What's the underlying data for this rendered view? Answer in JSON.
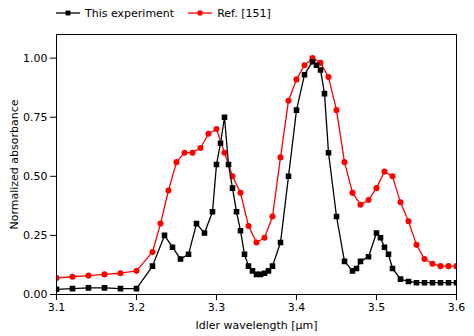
{
  "chart_data": {
    "type": "line",
    "xlabel": "Idler wavelength [μm]",
    "ylabel": "Normalized absorbance",
    "xlim": [
      3.1,
      3.6
    ],
    "ylim": [
      0.0,
      1.1
    ],
    "xticks": [
      3.1,
      3.2,
      3.3,
      3.4,
      3.5,
      3.6
    ],
    "yticks": [
      {
        "value": 0,
        "label": "0.00"
      },
      0.25,
      {
        "value": 0.5,
        "label": "0.50"
      },
      0.75,
      {
        "value": 1,
        "label": "1.00"
      }
    ],
    "legend": "upper left",
    "grid": false,
    "series": [
      {
        "name": "This experiment",
        "color": "#000000",
        "marker": "square",
        "x": [
          3.1,
          3.12,
          3.14,
          3.16,
          3.18,
          3.2,
          3.22,
          3.235,
          3.245,
          3.255,
          3.265,
          3.275,
          3.285,
          3.295,
          3.3,
          3.305,
          3.31,
          3.315,
          3.32,
          3.325,
          3.33,
          3.335,
          3.34,
          3.345,
          3.35,
          3.355,
          3.36,
          3.365,
          3.37,
          3.38,
          3.39,
          3.4,
          3.41,
          3.42,
          3.425,
          3.43,
          3.435,
          3.44,
          3.45,
          3.46,
          3.47,
          3.475,
          3.48,
          3.49,
          3.5,
          3.505,
          3.51,
          3.515,
          3.52,
          3.53,
          3.54,
          3.55,
          3.56,
          3.57,
          3.58,
          3.59,
          3.6
        ],
        "values": [
          0.022,
          0.025,
          0.028,
          0.028,
          0.025,
          0.025,
          0.12,
          0.25,
          0.2,
          0.15,
          0.17,
          0.3,
          0.26,
          0.35,
          0.55,
          0.64,
          0.75,
          0.55,
          0.45,
          0.35,
          0.27,
          0.17,
          0.12,
          0.1,
          0.085,
          0.085,
          0.09,
          0.1,
          0.12,
          0.22,
          0.5,
          0.78,
          0.93,
          0.985,
          0.97,
          0.95,
          0.85,
          0.6,
          0.33,
          0.14,
          0.1,
          0.11,
          0.14,
          0.16,
          0.26,
          0.24,
          0.2,
          0.17,
          0.11,
          0.065,
          0.055,
          0.05,
          0.05,
          0.05,
          0.05,
          0.05,
          0.05
        ]
      },
      {
        "name": "Ref. [151]",
        "color": "#ff0000",
        "marker": "circle",
        "x": [
          3.1,
          3.12,
          3.14,
          3.16,
          3.18,
          3.2,
          3.22,
          3.23,
          3.24,
          3.25,
          3.26,
          3.27,
          3.28,
          3.29,
          3.3,
          3.31,
          3.32,
          3.33,
          3.34,
          3.35,
          3.36,
          3.37,
          3.38,
          3.39,
          3.4,
          3.41,
          3.42,
          3.43,
          3.44,
          3.45,
          3.46,
          3.47,
          3.48,
          3.49,
          3.5,
          3.51,
          3.52,
          3.53,
          3.54,
          3.55,
          3.56,
          3.57,
          3.58,
          3.59,
          3.6
        ],
        "values": [
          0.07,
          0.075,
          0.08,
          0.085,
          0.09,
          0.1,
          0.18,
          0.3,
          0.44,
          0.56,
          0.6,
          0.6,
          0.62,
          0.68,
          0.7,
          0.6,
          0.5,
          0.43,
          0.29,
          0.22,
          0.24,
          0.33,
          0.58,
          0.82,
          0.91,
          0.97,
          1.0,
          0.98,
          0.92,
          0.78,
          0.56,
          0.43,
          0.38,
          0.4,
          0.45,
          0.52,
          0.5,
          0.39,
          0.31,
          0.21,
          0.15,
          0.13,
          0.12,
          0.12,
          0.12
        ]
      }
    ]
  }
}
